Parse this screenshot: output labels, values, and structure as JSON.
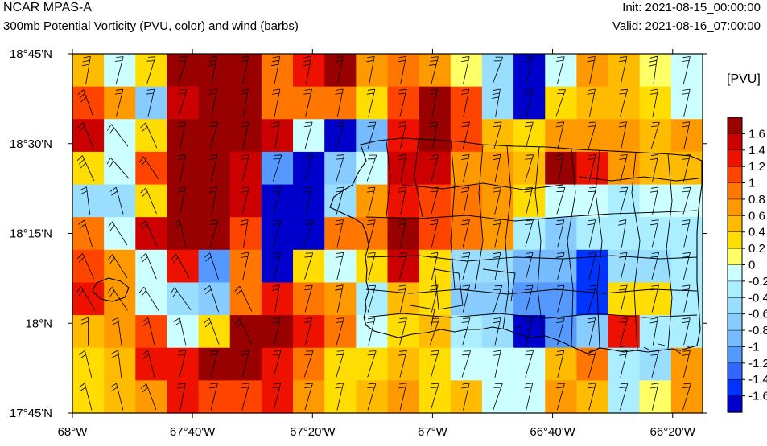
{
  "header": {
    "model": "NCAR MPAS-A",
    "field": "300mb Potential Vorticity (PVU, color) and wind (barbs)",
    "init": "Init: 2021-08-15_00:00:00",
    "valid": "Valid: 2021-08-16_07:00:00"
  },
  "map": {
    "lon_range": [
      -68.0,
      -66.25
    ],
    "lat_range": [
      17.75,
      18.75
    ],
    "lon_ticks": [
      -68.0,
      -67.6667,
      -67.3333,
      -67.0,
      -66.6667,
      -66.3333
    ],
    "lon_tick_labels": [
      "68°W",
      "67°40'W",
      "67°20'W",
      "67°W",
      "66°40'W",
      "66°20'W"
    ],
    "lat_ticks": [
      18.75,
      18.5,
      18.25,
      18.0,
      17.75
    ],
    "lat_tick_labels": [
      "18°45'N",
      "18°30'N",
      "18°15'N",
      "18°N",
      "17°45'N"
    ],
    "pv_grid": [
      [
        0.4,
        -0.2,
        0.2,
        1.8,
        1.8,
        1.8,
        0.8,
        1.2,
        1.6,
        0.6,
        0.8,
        0.6,
        0.0,
        -0.6,
        -1.8,
        -0.2,
        0.6,
        0.4,
        0.0,
        -0.2
      ],
      [
        1.0,
        0.6,
        -0.8,
        1.4,
        1.8,
        1.8,
        0.8,
        0.8,
        0.8,
        0.2,
        1.0,
        1.7,
        1.0,
        -0.6,
        -1.8,
        0.2,
        0.4,
        0.4,
        0.2,
        -0.2
      ],
      [
        1.4,
        -0.2,
        0.2,
        1.8,
        1.8,
        1.8,
        1.4,
        -0.2,
        -1.8,
        -1.0,
        1.2,
        1.8,
        1.0,
        0.4,
        0.2,
        0.6,
        0.6,
        0.6,
        0.4,
        0.6
      ],
      [
        0.2,
        -0.2,
        1.0,
        1.8,
        1.8,
        1.4,
        -1.2,
        -1.8,
        -0.8,
        -0.2,
        1.4,
        1.4,
        0.6,
        0.6,
        0.4,
        1.8,
        1.2,
        0.6,
        0.4,
        0.4
      ],
      [
        -0.6,
        -0.6,
        0.2,
        1.8,
        1.8,
        1.4,
        -1.8,
        -1.8,
        -0.6,
        0.6,
        1.2,
        1.0,
        0.8,
        0.6,
        0.2,
        -0.2,
        -0.2,
        -0.4,
        -0.2,
        -0.2
      ],
      [
        0.8,
        -0.2,
        1.4,
        1.8,
        1.8,
        1.0,
        -1.8,
        -1.8,
        0.8,
        0.8,
        1.6,
        1.0,
        0.8,
        0.6,
        -0.4,
        -0.8,
        -0.4,
        -0.4,
        -0.4,
        -0.4
      ],
      [
        1.0,
        0.6,
        -0.2,
        1.2,
        -1.2,
        0.8,
        -1.8,
        0.2,
        -0.2,
        0.2,
        1.4,
        0.2,
        -0.6,
        -0.6,
        -1.0,
        -1.0,
        -1.6,
        -0.6,
        -0.6,
        -0.4
      ],
      [
        1.2,
        0.6,
        -0.2,
        -0.6,
        -0.8,
        0.8,
        1.2,
        0.8,
        0.6,
        -0.4,
        0.4,
        0.2,
        -0.8,
        -0.8,
        -1.2,
        -1.2,
        -1.6,
        0.2,
        0.2,
        -0.4
      ],
      [
        0.4,
        0.6,
        1.0,
        -0.2,
        0.2,
        1.6,
        1.6,
        1.2,
        0.8,
        -0.2,
        0.2,
        0.4,
        -0.4,
        -0.6,
        -1.8,
        -1.2,
        -0.8,
        1.2,
        -0.4,
        -0.4
      ],
      [
        0.2,
        0.4,
        1.2,
        1.2,
        1.6,
        1.6,
        1.2,
        0.8,
        0.2,
        0.2,
        0.4,
        0.2,
        -0.2,
        -0.2,
        -0.2,
        0.4,
        0.8,
        -0.4,
        -0.6,
        0.6
      ],
      [
        0.2,
        0.4,
        0.6,
        1.2,
        1.0,
        1.0,
        1.2,
        0.6,
        0.2,
        0.4,
        0.6,
        0.2,
        0.4,
        -0.2,
        -0.2,
        0.6,
        0.4,
        -0.4,
        0.0,
        0.6
      ]
    ],
    "wind_barbs": [
      [
        [
          -10,
          60
        ],
        [
          -12,
          45
        ],
        [
          -16,
          52
        ],
        [
          -12,
          40
        ],
        [
          -10,
          55
        ],
        [
          -10,
          48
        ],
        [
          -12,
          62
        ],
        [
          -10,
          55
        ],
        [
          -10,
          50
        ],
        [
          -8,
          42
        ],
        [
          -10,
          50
        ],
        [
          -14,
          55
        ],
        [
          -10,
          45
        ],
        [
          -15,
          40
        ],
        [
          -12,
          50
        ],
        [
          -12,
          46
        ],
        [
          -10,
          50
        ],
        [
          -10,
          45
        ],
        [
          -8,
          60
        ],
        [
          -10,
          42
        ]
      ],
      [
        [
          20,
          55
        ],
        [
          -10,
          40
        ],
        [
          -12,
          52
        ],
        [
          -14,
          48
        ],
        [
          -10,
          50
        ],
        [
          -8,
          45
        ],
        [
          -10,
          50
        ],
        [
          -12,
          52
        ],
        [
          -8,
          40
        ],
        [
          -10,
          42
        ],
        [
          -12,
          50
        ],
        [
          -10,
          52
        ],
        [
          -10,
          48
        ],
        [
          -10,
          60
        ],
        [
          -12,
          50
        ],
        [
          -14,
          40
        ],
        [
          -10,
          48
        ],
        [
          -12,
          45
        ],
        [
          -10,
          52
        ],
        [
          -10,
          45
        ]
      ],
      [
        [
          20,
          50
        ],
        [
          30,
          40
        ],
        [
          20,
          45
        ],
        [
          -10,
          48
        ],
        [
          -12,
          42
        ],
        [
          -10,
          46
        ],
        [
          -8,
          50
        ],
        [
          -14,
          52
        ],
        [
          -16,
          48
        ],
        [
          -15,
          50
        ],
        [
          -10,
          46
        ],
        [
          -10,
          52
        ],
        [
          -12,
          48
        ],
        [
          -12,
          44
        ],
        [
          -14,
          50
        ],
        [
          -10,
          44
        ],
        [
          -12,
          42
        ],
        [
          -10,
          50
        ],
        [
          -14,
          46
        ],
        [
          -10,
          48
        ]
      ],
      [
        [
          25,
          55
        ],
        [
          35,
          40
        ],
        [
          30,
          45
        ],
        [
          -10,
          50
        ],
        [
          -10,
          42
        ],
        [
          -12,
          48
        ],
        [
          -16,
          50
        ],
        [
          -14,
          45
        ],
        [
          -12,
          40
        ],
        [
          -18,
          50
        ],
        [
          -10,
          50
        ],
        [
          -12,
          46
        ],
        [
          -10,
          45
        ],
        [
          -10,
          50
        ],
        [
          -12,
          40
        ],
        [
          -8,
          48
        ],
        [
          -10,
          42
        ],
        [
          -12,
          48
        ],
        [
          -10,
          46
        ],
        [
          -10,
          42
        ]
      ],
      [
        [
          5,
          40
        ],
        [
          10,
          38
        ],
        [
          20,
          48
        ],
        [
          -10,
          50
        ],
        [
          -10,
          48
        ],
        [
          -12,
          50
        ],
        [
          -14,
          52
        ],
        [
          -10,
          46
        ],
        [
          -12,
          44
        ],
        [
          -10,
          42
        ],
        [
          -10,
          48
        ],
        [
          -14,
          52
        ],
        [
          -10,
          50
        ],
        [
          -10,
          44
        ],
        [
          -12,
          50
        ],
        [
          -14,
          46
        ],
        [
          -12,
          40
        ],
        [
          -14,
          50
        ],
        [
          -10,
          46
        ],
        [
          -12,
          44
        ]
      ],
      [
        [
          15,
          50
        ],
        [
          25,
          40
        ],
        [
          20,
          45
        ],
        [
          10,
          45
        ],
        [
          -12,
          42
        ],
        [
          -8,
          50
        ],
        [
          -14,
          48
        ],
        [
          -16,
          42
        ],
        [
          -10,
          45
        ],
        [
          -12,
          48
        ],
        [
          -10,
          52
        ],
        [
          -10,
          44
        ],
        [
          -12,
          50
        ],
        [
          -10,
          45
        ],
        [
          -12,
          42
        ],
        [
          -12,
          50
        ],
        [
          -10,
          45
        ],
        [
          -8,
          50
        ],
        [
          -10,
          44
        ],
        [
          -10,
          46
        ]
      ],
      [
        [
          20,
          45
        ],
        [
          25,
          40
        ],
        [
          20,
          50
        ],
        [
          25,
          45
        ],
        [
          15,
          46
        ],
        [
          -10,
          48
        ],
        [
          -12,
          50
        ],
        [
          -14,
          45
        ],
        [
          -10,
          42
        ],
        [
          -12,
          46
        ],
        [
          -14,
          50
        ],
        [
          -10,
          45
        ],
        [
          -12,
          44
        ],
        [
          -10,
          50
        ],
        [
          -12,
          46
        ],
        [
          -10,
          40
        ],
        [
          -12,
          48
        ],
        [
          -10,
          44
        ],
        [
          -12,
          46
        ],
        [
          -10,
          42
        ]
      ],
      [
        [
          25,
          42
        ],
        [
          30,
          45
        ],
        [
          25,
          40
        ],
        [
          30,
          42
        ],
        [
          15,
          45
        ],
        [
          20,
          42
        ],
        [
          -8,
          48
        ],
        [
          -12,
          44
        ],
        [
          -10,
          50
        ],
        [
          -12,
          42
        ],
        [
          -10,
          46
        ],
        [
          -10,
          44
        ],
        [
          -12,
          48
        ],
        [
          -14,
          44
        ],
        [
          -12,
          46
        ],
        [
          -10,
          40
        ],
        [
          -14,
          46
        ],
        [
          -10,
          42
        ],
        [
          -12,
          48
        ],
        [
          -10,
          46
        ]
      ],
      [
        [
          0,
          40
        ],
        [
          5,
          38
        ],
        [
          10,
          42
        ],
        [
          10,
          44
        ],
        [
          15,
          40
        ],
        [
          20,
          42
        ],
        [
          -10,
          46
        ],
        [
          -10,
          40
        ],
        [
          -12,
          44
        ],
        [
          -10,
          42
        ],
        [
          -12,
          46
        ],
        [
          -14,
          40
        ],
        [
          -12,
          44
        ],
        [
          -10,
          48
        ],
        [
          -10,
          42
        ],
        [
          -12,
          46
        ],
        [
          -10,
          44
        ],
        [
          -12,
          42
        ],
        [
          -8,
          46
        ],
        [
          -10,
          44
        ]
      ],
      [
        [
          10,
          40
        ],
        [
          5,
          42
        ],
        [
          10,
          40
        ],
        [
          -10,
          42
        ],
        [
          -12,
          46
        ],
        [
          -10,
          40
        ],
        [
          -12,
          44
        ],
        [
          -14,
          42
        ],
        [
          -12,
          40
        ],
        [
          -14,
          44
        ],
        [
          -10,
          40
        ],
        [
          -12,
          42
        ],
        [
          -14,
          44
        ],
        [
          -10,
          46
        ],
        [
          -12,
          40
        ],
        [
          -10,
          42
        ],
        [
          -12,
          44
        ],
        [
          -10,
          40
        ],
        [
          -12,
          46
        ],
        [
          -10,
          42
        ]
      ],
      [
        [
          10,
          38
        ],
        [
          10,
          40
        ],
        [
          15,
          40
        ],
        [
          -8,
          42
        ],
        [
          -10,
          40
        ],
        [
          -12,
          44
        ],
        [
          -10,
          40
        ],
        [
          -12,
          42
        ],
        [
          -10,
          44
        ],
        [
          -12,
          40
        ],
        [
          -10,
          42
        ],
        [
          -12,
          40
        ],
        [
          -10,
          44
        ],
        [
          -14,
          40
        ],
        [
          -10,
          42
        ],
        [
          -12,
          44
        ],
        [
          -10,
          40
        ],
        [
          -12,
          42
        ],
        [
          -10,
          44
        ],
        [
          -12,
          40
        ]
      ]
    ],
    "colorbar": {
      "units": "[PVU]",
      "levels": [
        1.6,
        1.4,
        1.2,
        1.0,
        0.8,
        0.6,
        0.4,
        0.2,
        0.0,
        -0.2,
        -0.4,
        -0.6,
        -0.8,
        -1.0,
        -1.2,
        -1.4,
        -1.6
      ],
      "labels": [
        "1.6",
        "1.4",
        "1.2",
        "1",
        "0.8",
        "0.6",
        "0.4",
        "0.2",
        "0",
        "-0.2",
        "-0.4",
        "-0.6",
        "-0.8",
        "-1",
        "-1.2",
        "-1.4",
        "-1.6"
      ],
      "colors": [
        "#990000",
        "#CC0000",
        "#EE1100",
        "#FF4400",
        "#FF7700",
        "#FF9900",
        "#FFBB00",
        "#FFDD00",
        "#FFFF66",
        "#CCFFFF",
        "#AAEEFF",
        "#99DDFF",
        "#88CCFF",
        "#77BBFF",
        "#5599FF",
        "#3366FF",
        "#0033FF",
        "#0000CC"
      ]
    }
  }
}
